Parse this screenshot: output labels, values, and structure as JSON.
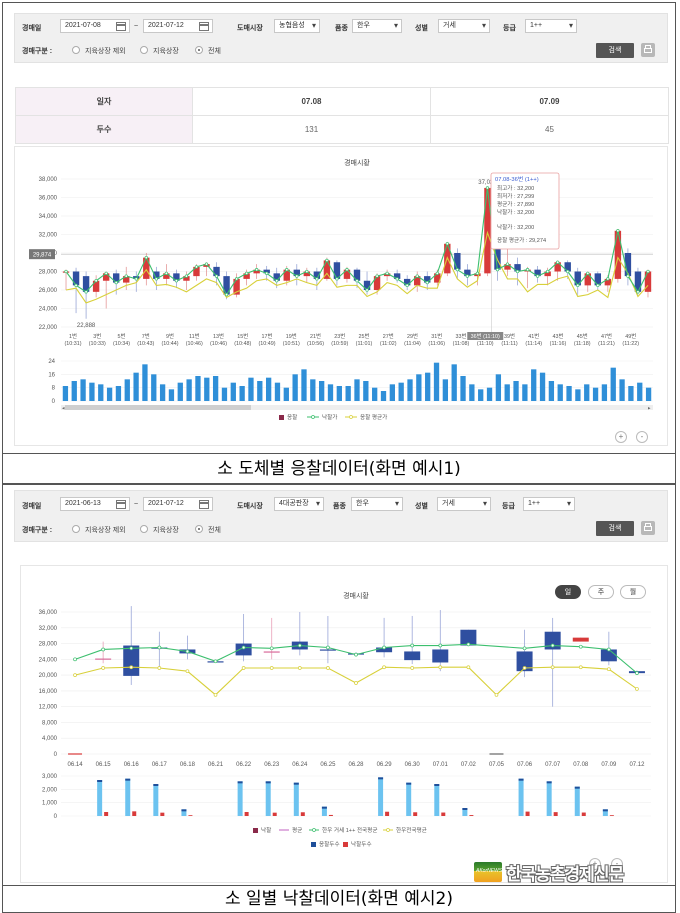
{
  "screen1": {
    "filter": {
      "date_label": "경매일",
      "date_from": "2021-07-08",
      "date_sep": "~",
      "date_to": "2021-07-12",
      "market_label": "도매시장",
      "market_value": "농협음성",
      "item_label": "품종",
      "item_value": "한우",
      "sex_label": "성별",
      "sex_value": "거세",
      "grade_label": "등급",
      "grade_value": "1++",
      "type_label": "경매구분 :",
      "radio_options": [
        "지육상장 제외",
        "지육상장",
        "전체"
      ],
      "radio_selected": 2,
      "search_label": "검색"
    },
    "summary": {
      "row1_label": "일자",
      "row2_label": "두수",
      "dates": [
        "07.08",
        "07.09"
      ],
      "counts": [
        "131",
        "45"
      ]
    },
    "chart_data": {
      "type": "candlestick-line-bar",
      "title": "경매시황",
      "y_ticks": [
        "22,000",
        "24,000",
        "26,000",
        "28,000",
        "30,000",
        "32,000",
        "34,000",
        "36,000",
        "38,000"
      ],
      "ylim": [
        22000,
        38000
      ],
      "x_labels": [
        [
          "1번",
          "(10:31)"
        ],
        [
          "3번",
          "(10:33)"
        ],
        [
          "5번",
          "(10:34)"
        ],
        [
          "7번",
          "(10:43)"
        ],
        [
          "9번",
          "(10:44)"
        ],
        [
          "11번",
          "(10:46)"
        ],
        [
          "13번",
          "(10:46)"
        ],
        [
          "15번",
          "(10:48)"
        ],
        [
          "17번",
          "(10:49)"
        ],
        [
          "19번",
          "(10:51)"
        ],
        [
          "21번",
          "(10:56)"
        ],
        [
          "23번",
          "(10:59)"
        ],
        [
          "25번",
          "(11:01)"
        ],
        [
          "27번",
          "(11:02)"
        ],
        [
          "29번",
          "(11:04)"
        ],
        [
          "31번",
          "(11:06)"
        ],
        [
          "33번",
          "(11:08)"
        ],
        [
          "36번",
          "(11:10)"
        ],
        [
          "39번",
          "(11:11)"
        ],
        [
          "41번",
          "(11:14)"
        ],
        [
          "43번",
          "(11:16)"
        ],
        [
          "45번",
          "(11:18)"
        ],
        [
          "47번",
          "(11:21)"
        ],
        [
          "49번",
          "(11:22)"
        ]
      ],
      "highlight_x_label": "36번 (11:10)",
      "candles": [
        {
          "o": 28000,
          "c": 28000,
          "h": 28200,
          "l": 26000
        },
        {
          "o": 28000,
          "c": 26500,
          "h": 28400,
          "l": 23500
        },
        {
          "o": 27500,
          "c": 25800,
          "h": 28000,
          "l": 22888
        },
        {
          "o": 25800,
          "c": 27000,
          "h": 27600,
          "l": 25200
        },
        {
          "o": 27000,
          "c": 27800,
          "h": 28000,
          "l": 24000
        },
        {
          "o": 27800,
          "c": 26800,
          "h": 28200,
          "l": 25500
        },
        {
          "o": 26800,
          "c": 27500,
          "h": 28500,
          "l": 26000
        },
        {
          "o": 27500,
          "c": 27200,
          "h": 28000,
          "l": 25800
        },
        {
          "o": 27200,
          "c": 29500,
          "h": 30000,
          "l": 26500
        },
        {
          "o": 28000,
          "c": 27200,
          "h": 28500,
          "l": 26000
        },
        {
          "o": 27200,
          "c": 27800,
          "h": 28800,
          "l": 26500
        },
        {
          "o": 27800,
          "c": 27000,
          "h": 28200,
          "l": 26200
        },
        {
          "o": 27000,
          "c": 27500,
          "h": 28000,
          "l": 26000
        },
        {
          "o": 27500,
          "c": 28500,
          "h": 28800,
          "l": 27000
        },
        {
          "o": 28500,
          "c": 28800,
          "h": 29000,
          "l": 27500
        },
        {
          "o": 28500,
          "c": 27500,
          "h": 29000,
          "l": 26500
        },
        {
          "o": 27500,
          "c": 25500,
          "h": 28000,
          "l": 25000
        },
        {
          "o": 25500,
          "c": 27200,
          "h": 27800,
          "l": 25200
        },
        {
          "o": 27200,
          "c": 27800,
          "h": 28200,
          "l": 26500
        },
        {
          "o": 27800,
          "c": 28200,
          "h": 28800,
          "l": 27200
        },
        {
          "o": 28200,
          "c": 27800,
          "h": 28600,
          "l": 27000
        },
        {
          "o": 27800,
          "c": 27000,
          "h": 28400,
          "l": 26200
        },
        {
          "o": 27000,
          "c": 28200,
          "h": 28600,
          "l": 26500
        },
        {
          "o": 28200,
          "c": 27500,
          "h": 28800,
          "l": 26500
        },
        {
          "o": 27500,
          "c": 28000,
          "h": 28400,
          "l": 26800
        },
        {
          "o": 28000,
          "c": 27200,
          "h": 28400,
          "l": 26000
        },
        {
          "o": 27200,
          "c": 29200,
          "h": 29500,
          "l": 27000
        },
        {
          "o": 29000,
          "c": 27200,
          "h": 29200,
          "l": 26500
        },
        {
          "o": 27200,
          "c": 28200,
          "h": 28500,
          "l": 26800
        },
        {
          "o": 28200,
          "c": 27000,
          "h": 28400,
          "l": 26200
        },
        {
          "o": 27000,
          "c": 26000,
          "h": 28000,
          "l": 25500
        },
        {
          "o": 26000,
          "c": 27500,
          "h": 27800,
          "l": 25500
        },
        {
          "o": 27500,
          "c": 27800,
          "h": 28200,
          "l": 27000
        },
        {
          "o": 27800,
          "c": 27200,
          "h": 28200,
          "l": 26800
        },
        {
          "o": 27200,
          "c": 26500,
          "h": 27600,
          "l": 26000
        },
        {
          "o": 26500,
          "c": 27500,
          "h": 28000,
          "l": 25800
        },
        {
          "o": 27500,
          "c": 26800,
          "h": 28000,
          "l": 26000
        },
        {
          "o": 26800,
          "c": 27800,
          "h": 28200,
          "l": 26500
        },
        {
          "o": 27800,
          "c": 31000,
          "h": 31200,
          "l": 27500
        },
        {
          "o": 30000,
          "c": 28200,
          "h": 30500,
          "l": 27200
        },
        {
          "o": 28200,
          "c": 27500,
          "h": 28800,
          "l": 26500
        },
        {
          "o": 27500,
          "c": 27800,
          "h": 28200,
          "l": 26500
        },
        {
          "o": 27800,
          "c": 37035,
          "h": 37035,
          "l": 27500
        },
        {
          "o": 33500,
          "c": 28200,
          "h": 34000,
          "l": 27000
        },
        {
          "o": 28200,
          "c": 28800,
          "h": 30500,
          "l": 27500
        },
        {
          "o": 28800,
          "c": 28000,
          "h": 29500,
          "l": 26500
        },
        {
          "o": 28000,
          "c": 28200,
          "h": 28500,
          "l": 26200
        },
        {
          "o": 28200,
          "c": 27500,
          "h": 28600,
          "l": 26800
        },
        {
          "o": 27500,
          "c": 28000,
          "h": 28400,
          "l": 26500
        },
        {
          "o": 28000,
          "c": 29000,
          "h": 29200,
          "l": 27000
        },
        {
          "o": 29000,
          "c": 28000,
          "h": 29200,
          "l": 27200
        },
        {
          "o": 28000,
          "c": 26500,
          "h": 28400,
          "l": 25500
        },
        {
          "o": 26500,
          "c": 27800,
          "h": 28000,
          "l": 25800
        },
        {
          "o": 27800,
          "c": 26500,
          "h": 28000,
          "l": 26000
        },
        {
          "o": 26500,
          "c": 27200,
          "h": 27600,
          "l": 25800
        },
        {
          "o": 27200,
          "c": 32400,
          "h": 32600,
          "l": 26800
        },
        {
          "o": 30000,
          "c": 27500,
          "h": 30500,
          "l": 26500
        },
        {
          "o": 28000,
          "c": 25800,
          "h": 28400,
          "l": 25500
        },
        {
          "o": 25800,
          "c": 28000,
          "h": 28200,
          "l": 25200
        }
      ],
      "series_lines": [
        {
          "name": "낙찰가",
          "color": "#3cbf6e"
        },
        {
          "name": "응찰 평균가",
          "color": "#d8d03a"
        }
      ],
      "avg_values": [
        26000,
        26200,
        24600,
        25000,
        25500,
        26000,
        26500,
        26800,
        28200,
        26500,
        26600,
        26300,
        25800,
        26500,
        27200,
        26800,
        25200,
        25800,
        26200,
        27000,
        27200,
        26500,
        26800,
        27200,
        26800,
        26500,
        27800,
        26300,
        26500,
        26500,
        25300,
        25800,
        26800,
        26500,
        25600,
        26500,
        26200,
        26200,
        29500,
        27200,
        26300,
        27000,
        32200,
        29274,
        27200,
        27200,
        25800,
        26600,
        26600,
        27200,
        27500,
        25300,
        25500,
        26000,
        25200,
        29500,
        27800,
        25300,
        26500
      ],
      "current_value_label": "29,874",
      "min_label": "22,888",
      "max_label": "37,035",
      "tooltip": {
        "header": "07.08-36번 (1++)",
        "lines": [
          "최고가 : 32,200",
          "최저가 : 27,299",
          "평균가 : 27,890",
          "낙찰가 : 32,200"
        ],
        "line5": "낙찰가 : 32,200",
        "line6": "응찰 평균가 : 29,274"
      },
      "bar_y_ticks": [
        "0",
        "8",
        "16",
        "24"
      ],
      "bar_ylim": [
        0,
        24
      ],
      "bar_values": [
        9,
        12,
        13,
        11,
        10,
        8,
        9,
        13,
        17,
        22,
        16,
        10,
        7,
        11,
        13,
        15,
        14,
        15,
        8,
        11,
        9,
        14,
        12,
        14,
        11,
        8,
        16,
        19,
        13,
        12,
        10,
        9,
        9,
        13,
        12,
        8,
        6,
        10,
        11,
        13,
        16,
        17,
        23,
        13,
        22,
        15,
        10,
        7,
        8,
        16,
        10,
        12,
        10,
        19,
        17,
        12,
        10,
        9,
        7,
        10,
        8,
        10,
        20,
        13,
        9,
        11,
        8
      ],
      "legend": [
        "응찰",
        "낙찰가",
        "응찰 평균가"
      ]
    }
  },
  "caption1": "소 도체별 응찰데이터(화면 예시1)",
  "screen2": {
    "filter": {
      "date_label": "경매일",
      "date_from": "2021-06-13",
      "date_sep": "~",
      "date_to": "2021-07-12",
      "market_label": "도매시장",
      "market_value": "4대공판장",
      "item_label": "품종",
      "item_value": "한우",
      "sex_label": "성별",
      "sex_value": "거세",
      "grade_label": "등급",
      "grade_value": "1++",
      "type_label": "경매구분 :",
      "radio_options": [
        "지육상장 제외",
        "지육상장",
        "전체"
      ],
      "radio_selected": 2,
      "search_label": "검색"
    },
    "toggles": [
      "일",
      "주",
      "월"
    ],
    "toggle_selected": 0,
    "chart_data": {
      "type": "candlestick-line-bar",
      "title": "경매시황",
      "y_ticks": [
        "0",
        "4,000",
        "8,000",
        "12,000",
        "16,000",
        "20,000",
        "24,000",
        "28,000",
        "32,000",
        "36,000"
      ],
      "ylim": [
        0,
        36000
      ],
      "categories": [
        "06.14",
        "06.15",
        "06.16",
        "06.17",
        "06.18",
        "06.21",
        "06.22",
        "06.23",
        "06.24",
        "06.25",
        "06.28",
        "06.29",
        "06.30",
        "07.01",
        "07.02",
        "07.05",
        "07.06",
        "07.07",
        "07.08",
        "07.09",
        "07.12"
      ],
      "candles": [
        {
          "o": null,
          "c": null,
          "h": null,
          "l": null
        },
        {
          "o": 24200,
          "c": 24200,
          "h": 28500,
          "l": 23000
        },
        {
          "o": 27500,
          "c": 19800,
          "h": 37500,
          "l": 17500
        },
        {
          "o": 27000,
          "c": 27000,
          "h": 31000,
          "l": 22000
        },
        {
          "o": 26500,
          "c": 25500,
          "h": 30000,
          "l": 24000
        },
        {
          "o": 23500,
          "c": 23500,
          "h": 23800,
          "l": 23200
        },
        {
          "o": 28000,
          "c": 25000,
          "h": 35500,
          "l": 23500
        },
        {
          "o": 26000,
          "c": 25800,
          "h": 34500,
          "l": 24000
        },
        {
          "o": 28500,
          "c": 26500,
          "h": 36000,
          "l": 25000
        },
        {
          "o": 26500,
          "c": 26300,
          "h": 35000,
          "l": 23000
        },
        {
          "o": 25500,
          "c": 25500,
          "h": 25800,
          "l": 25200
        },
        {
          "o": 27000,
          "c": 25800,
          "h": 34500,
          "l": 24500
        },
        {
          "o": 26000,
          "c": 23800,
          "h": 35000,
          "l": 22800
        },
        {
          "o": 26500,
          "c": 23200,
          "h": 36500,
          "l": 21000
        },
        {
          "o": 31500,
          "c": 27500,
          "h": 31500,
          "l": 27500
        },
        {
          "o": null,
          "c": null,
          "h": null,
          "l": null
        },
        {
          "o": 26000,
          "c": 21000,
          "h": 31500,
          "l": 19500
        },
        {
          "o": 31000,
          "c": 26500,
          "h": 34500,
          "l": 12000
        },
        {
          "o": 29500,
          "c": 28500,
          "h": 29500,
          "l": 28500
        },
        {
          "o": 26500,
          "c": 23500,
          "h": 31000,
          "l": 22500
        },
        {
          "o": 21000,
          "c": 20500,
          "h": 21200,
          "l": 20500
        }
      ],
      "green_line": [
        24000,
        26500,
        26800,
        27000,
        26000,
        23500,
        27000,
        26800,
        27500,
        27000,
        25200,
        27000,
        27500,
        27500,
        27800,
        null,
        26800,
        27500,
        27200,
        26500,
        20500
      ],
      "yellow_line": [
        20000,
        21800,
        22000,
        21800,
        21000,
        15000,
        21800,
        21800,
        21800,
        21800,
        18000,
        22000,
        21800,
        22000,
        22000,
        15000,
        21800,
        22000,
        22000,
        21500,
        16500
      ],
      "bar_y_ticks": [
        "0",
        "1,000",
        "2,000",
        "3,000"
      ],
      "bar_ylim": [
        0,
        3000
      ],
      "bids": [
        0,
        2700,
        2800,
        2400,
        500,
        0,
        2600,
        2600,
        2500,
        700,
        0,
        2900,
        2500,
        2400,
        600,
        0,
        2800,
        2600,
        2200,
        500,
        0
      ],
      "wins": [
        0,
        300,
        350,
        250,
        60,
        0,
        300,
        250,
        280,
        80,
        0,
        320,
        280,
        260,
        70,
        0,
        330,
        290,
        260,
        60,
        0
      ],
      "legend": [
        "낙찰",
        "평균",
        "한우 거세 1++ 전국평균",
        "한우전국평균",
        "응찰두수",
        "낙찰두수"
      ]
    },
    "watermark": "한국농촌경제신문",
    "watermark_logo_text": "AKorNEWS"
  },
  "caption2": "소 일별 낙찰데이터(화면 예시2)",
  "colors": {
    "up": "#d83a3a",
    "down": "#2f4fa0",
    "green": "#3cbf6e",
    "yellow": "#d8d03a",
    "bar_blue": "#2f8fd8",
    "bar_light": "#6cc3f0",
    "bar_red": "#d83a3a"
  }
}
